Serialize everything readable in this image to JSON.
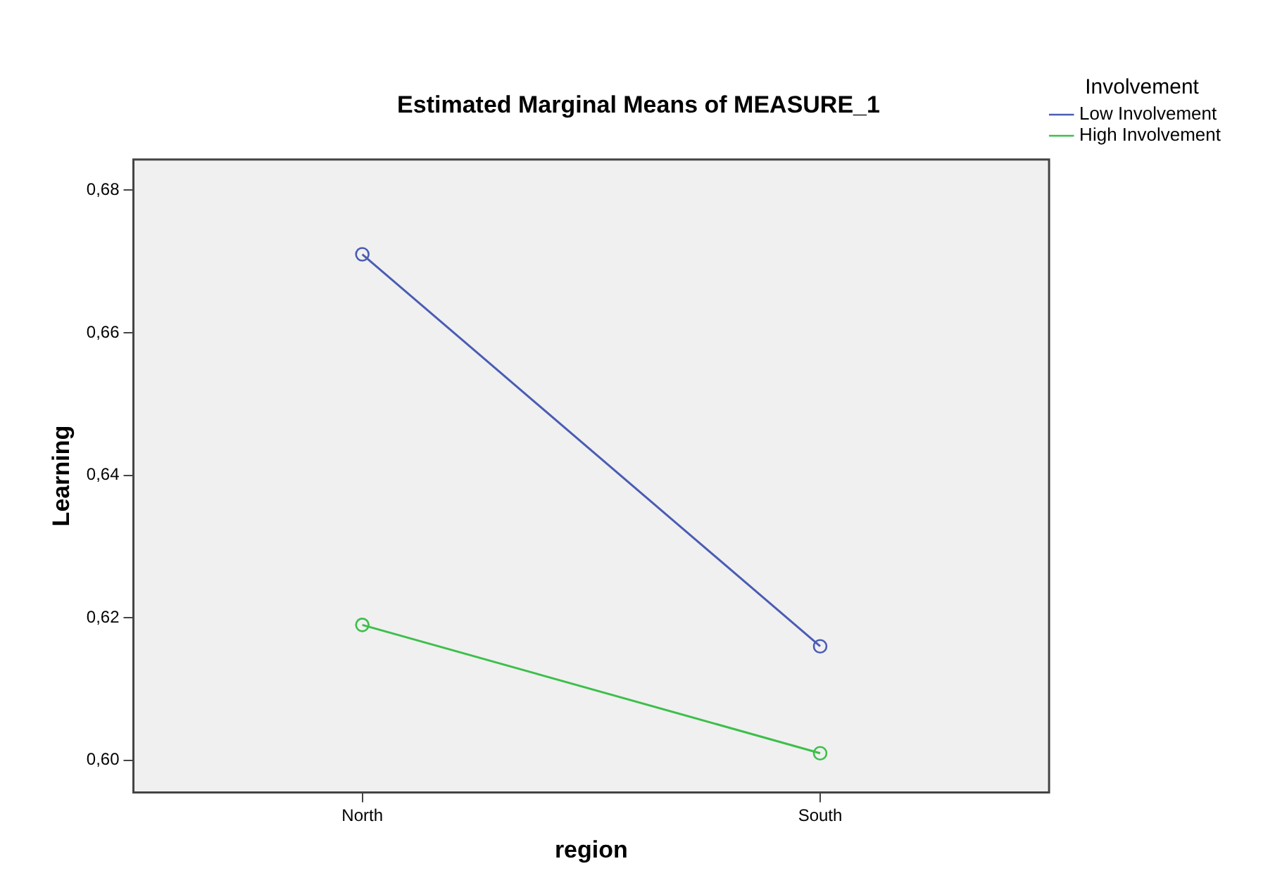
{
  "chart_data": {
    "type": "line",
    "title": "Estimated Marginal Means of MEASURE_1",
    "xlabel": "region",
    "ylabel": "Learning",
    "legend_title": "Involvement",
    "categories": [
      "North",
      "South"
    ],
    "series": [
      {
        "name": "Low Involvement",
        "color": "#4a5cb5",
        "values": [
          0.671,
          0.616
        ]
      },
      {
        "name": "High Involvement",
        "color": "#3cbf4a",
        "values": [
          0.619,
          0.601
        ]
      }
    ],
    "ylim": [
      0.5955,
      0.6843
    ],
    "yticks": [
      {
        "value": 0.6,
        "label": "0,60"
      },
      {
        "value": 0.62,
        "label": "0,62"
      },
      {
        "value": 0.64,
        "label": "0,64"
      },
      {
        "value": 0.66,
        "label": "0,66"
      },
      {
        "value": 0.68,
        "label": "0,68"
      }
    ],
    "grid": false,
    "legend": "top right",
    "marker": "circle",
    "line_style": "solid"
  }
}
